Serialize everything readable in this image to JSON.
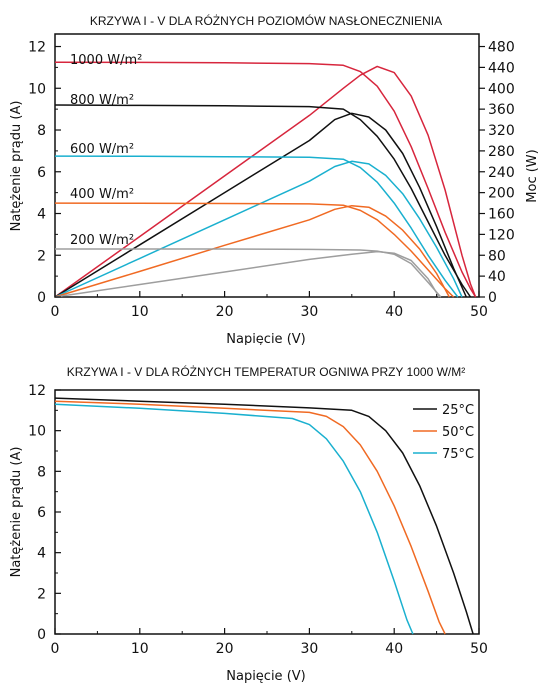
{
  "chart_data": [
    {
      "type": "line",
      "title": "KRZYWA I - V DLA RÓŻNYCH POZIOMÓW NASŁONECZNIENIA",
      "xlabel": "Napięcie (V)",
      "ylabel": "Natężenie prądu (A)",
      "y2label": "Moc (W)",
      "xlim": [
        0,
        50
      ],
      "ylim": [
        0,
        12.6
      ],
      "y2lim": [
        0,
        504
      ],
      "x_ticks": [
        0,
        10,
        20,
        30,
        40,
        50
      ],
      "y_ticks": [
        0,
        2,
        4,
        6,
        8,
        10,
        12
      ],
      "y2_ticks": [
        0,
        40,
        80,
        120,
        160,
        200,
        240,
        280,
        320,
        360,
        400,
        440,
        480
      ],
      "grid": false,
      "legend": "none",
      "annotations": [
        "1000 W/m²",
        "800 W/m²",
        "600 W/m²",
        "400 W/m²",
        "200 W/m²"
      ],
      "series": [
        {
          "color": "#d7263d",
          "axis": "left",
          "x": [
            0,
            10,
            20,
            30,
            34,
            36,
            38,
            40,
            42,
            44,
            46,
            48,
            49,
            49.6
          ],
          "y": [
            11.25,
            11.24,
            11.22,
            11.18,
            11.1,
            10.8,
            10.1,
            8.9,
            7.2,
            5.2,
            3.1,
            1.2,
            0.4,
            0
          ]
        },
        {
          "color": "#d7263d",
          "axis": "right",
          "x": [
            0,
            10,
            20,
            30,
            34,
            36,
            38,
            40,
            42,
            44,
            46,
            48,
            49,
            49.6
          ],
          "y": [
            0,
            116,
            232,
            348,
            400,
            425,
            442,
            430,
            385,
            310,
            205,
            80,
            25,
            0
          ]
        },
        {
          "color": "#111111",
          "axis": "left",
          "x": [
            0,
            10,
            20,
            30,
            34,
            36,
            38,
            40,
            42,
            44,
            46,
            48,
            49
          ],
          "y": [
            9.2,
            9.18,
            9.16,
            9.12,
            9.0,
            8.5,
            7.7,
            6.6,
            5.2,
            3.6,
            2.0,
            0.6,
            0
          ]
        },
        {
          "color": "#111111",
          "axis": "right",
          "x": [
            0,
            10,
            20,
            30,
            33,
            35,
            37,
            39,
            41,
            43,
            45,
            47,
            48.5
          ],
          "y": [
            0,
            100,
            200,
            300,
            340,
            352,
            345,
            320,
            275,
            210,
            135,
            55,
            0
          ]
        },
        {
          "color": "#1ab0cf",
          "axis": "left",
          "x": [
            0,
            10,
            20,
            30,
            34,
            36,
            38,
            40,
            42,
            44,
            46,
            47.5
          ],
          "y": [
            6.75,
            6.74,
            6.72,
            6.7,
            6.6,
            6.2,
            5.5,
            4.5,
            3.3,
            2.0,
            0.8,
            0
          ]
        },
        {
          "color": "#1ab0cf",
          "axis": "right",
          "x": [
            0,
            10,
            20,
            30,
            33,
            35,
            37,
            39,
            41,
            43,
            45,
            47,
            48
          ],
          "y": [
            0,
            74,
            148,
            222,
            250,
            260,
            255,
            233,
            198,
            150,
            95,
            35,
            0
          ]
        },
        {
          "color": "#f06a23",
          "axis": "left",
          "x": [
            0,
            10,
            20,
            30,
            34,
            36,
            38,
            40,
            42,
            44,
            46,
            47
          ],
          "y": [
            4.5,
            4.49,
            4.48,
            4.46,
            4.4,
            4.15,
            3.7,
            3.0,
            2.2,
            1.3,
            0.4,
            0
          ]
        },
        {
          "color": "#f06a23",
          "axis": "right",
          "x": [
            0,
            10,
            20,
            30,
            33,
            35,
            37,
            39,
            41,
            43,
            45,
            46.5
          ],
          "y": [
            0,
            49,
            99,
            148,
            168,
            175,
            172,
            155,
            128,
            92,
            45,
            0
          ]
        },
        {
          "color": "#9e9e9e",
          "axis": "left",
          "x": [
            0,
            10,
            20,
            30,
            36,
            38,
            40,
            42,
            44,
            45.5
          ],
          "y": [
            2.3,
            2.3,
            2.3,
            2.28,
            2.25,
            2.2,
            2.05,
            1.6,
            0.7,
            0
          ]
        },
        {
          "color": "#9e9e9e",
          "axis": "right",
          "x": [
            0,
            10,
            20,
            30,
            35,
            38,
            40,
            42,
            44,
            45.3
          ],
          "y": [
            0,
            24,
            48,
            72,
            82,
            87,
            84,
            70,
            35,
            0
          ]
        }
      ]
    },
    {
      "type": "line",
      "title": "KRZYWA I - V DLA RÓŻNYCH TEMPERATUR OGNIWA PRZY 1000 W/M²",
      "xlabel": "Napięcie (V)",
      "ylabel": "Natężenie prądu (A)",
      "xlim": [
        0,
        50
      ],
      "ylim": [
        0,
        12
      ],
      "x_ticks": [
        0,
        10,
        20,
        30,
        40,
        50
      ],
      "y_ticks": [
        0,
        2,
        4,
        6,
        8,
        10,
        12
      ],
      "grid": false,
      "legend": "top-right",
      "series": [
        {
          "name": "25°C",
          "color": "#111111",
          "x": [
            0,
            10,
            20,
            30,
            35,
            37,
            39,
            41,
            43,
            45,
            47,
            48.5,
            49.3
          ],
          "y": [
            11.6,
            11.45,
            11.3,
            11.12,
            11.0,
            10.7,
            10.0,
            8.9,
            7.3,
            5.3,
            3.0,
            1.1,
            0
          ]
        },
        {
          "name": "50°C",
          "color": "#f06a23",
          "x": [
            0,
            10,
            20,
            30,
            32,
            34,
            36,
            38,
            40,
            42,
            44,
            45.3,
            46
          ],
          "y": [
            11.45,
            11.3,
            11.1,
            10.9,
            10.7,
            10.2,
            9.3,
            8.0,
            6.3,
            4.3,
            2.1,
            0.6,
            0
          ]
        },
        {
          "name": "75°C",
          "color": "#1ab0cf",
          "x": [
            0,
            10,
            20,
            28,
            30,
            32,
            34,
            36,
            38,
            40,
            41.5,
            42.2
          ],
          "y": [
            11.3,
            11.1,
            10.85,
            10.6,
            10.3,
            9.6,
            8.5,
            7.0,
            5.0,
            2.6,
            0.7,
            0
          ]
        }
      ]
    }
  ]
}
